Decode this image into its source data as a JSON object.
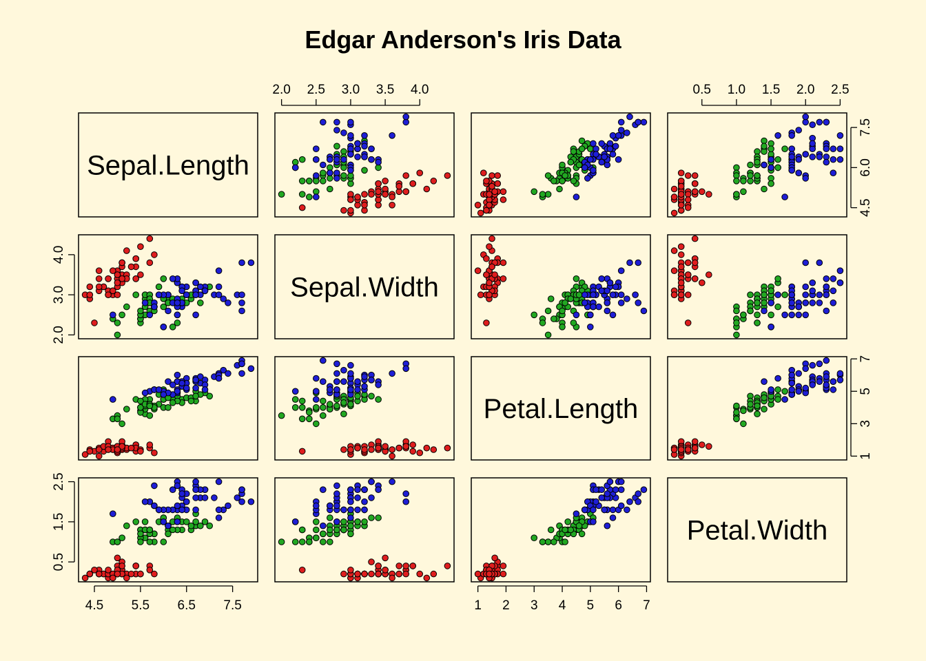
{
  "chart_data": {
    "type": "scatter",
    "kind": "scatterplot-matrix",
    "title": "Edgar Anderson's Iris Data",
    "variables": [
      "Sepal.Length",
      "Sepal.Width",
      "Petal.Length",
      "Petal.Width"
    ],
    "ranges": {
      "Sepal.Length": [
        4.3,
        7.9
      ],
      "Sepal.Width": [
        2.0,
        4.4
      ],
      "Petal.Length": [
        1.0,
        6.9
      ],
      "Petal.Width": [
        0.1,
        2.5
      ]
    },
    "ticks": {
      "Sepal.Length": [
        "4.5",
        "5.5",
        "6.5",
        "7.5"
      ],
      "Sepal.Width": [
        "2.0",
        "2.5",
        "3.0",
        "3.5",
        "4.0"
      ],
      "Petal.Length": [
        "1",
        "2",
        "3",
        "4",
        "5",
        "6",
        "7"
      ],
      "Petal.Width": [
        "0.5",
        "1.0",
        "1.5",
        "2.0",
        "2.5"
      ]
    },
    "left_ticks": {
      "Sepal.Width": [
        "2.0",
        "3.0",
        "4.0"
      ],
      "Petal.Width": [
        "0.5",
        "1.5",
        "2.5"
      ]
    },
    "right_ticks": {
      "Sepal.Length": [
        "4.5",
        "6.0",
        "7.5"
      ],
      "Petal.Length": [
        "1",
        "3",
        "5",
        "7"
      ]
    },
    "grid": false,
    "legend": "none",
    "series": [
      {
        "color": "#DF1E1E",
        "values": [
          [
            5.1,
            3.5,
            1.4,
            0.2
          ],
          [
            4.9,
            3.0,
            1.4,
            0.2
          ],
          [
            4.7,
            3.2,
            1.3,
            0.2
          ],
          [
            4.6,
            3.1,
            1.5,
            0.2
          ],
          [
            5.0,
            3.6,
            1.4,
            0.2
          ],
          [
            5.4,
            3.9,
            1.7,
            0.4
          ],
          [
            4.6,
            3.4,
            1.4,
            0.3
          ],
          [
            5.0,
            3.4,
            1.5,
            0.2
          ],
          [
            4.4,
            2.9,
            1.4,
            0.2
          ],
          [
            4.9,
            3.1,
            1.5,
            0.1
          ],
          [
            5.4,
            3.7,
            1.5,
            0.2
          ],
          [
            4.8,
            3.4,
            1.6,
            0.2
          ],
          [
            4.8,
            3.0,
            1.4,
            0.1
          ],
          [
            4.3,
            3.0,
            1.1,
            0.1
          ],
          [
            5.8,
            4.0,
            1.2,
            0.2
          ],
          [
            5.7,
            4.4,
            1.5,
            0.4
          ],
          [
            5.4,
            3.9,
            1.3,
            0.4
          ],
          [
            5.1,
            3.5,
            1.4,
            0.3
          ],
          [
            5.7,
            3.8,
            1.7,
            0.3
          ],
          [
            5.1,
            3.8,
            1.5,
            0.3
          ],
          [
            5.4,
            3.4,
            1.7,
            0.2
          ],
          [
            5.1,
            3.7,
            1.5,
            0.4
          ],
          [
            4.6,
            3.6,
            1.0,
            0.2
          ],
          [
            5.1,
            3.3,
            1.7,
            0.5
          ],
          [
            4.8,
            3.4,
            1.9,
            0.2
          ],
          [
            5.0,
            3.0,
            1.6,
            0.2
          ],
          [
            5.0,
            3.4,
            1.6,
            0.4
          ],
          [
            5.2,
            3.5,
            1.5,
            0.2
          ],
          [
            5.2,
            3.4,
            1.4,
            0.2
          ],
          [
            4.7,
            3.2,
            1.6,
            0.2
          ],
          [
            4.8,
            3.1,
            1.6,
            0.2
          ],
          [
            5.4,
            3.4,
            1.5,
            0.4
          ],
          [
            5.2,
            4.1,
            1.5,
            0.1
          ],
          [
            5.5,
            4.2,
            1.4,
            0.2
          ],
          [
            4.9,
            3.1,
            1.5,
            0.2
          ],
          [
            5.0,
            3.2,
            1.2,
            0.2
          ],
          [
            5.5,
            3.5,
            1.3,
            0.2
          ],
          [
            4.9,
            3.6,
            1.4,
            0.1
          ],
          [
            4.4,
            3.0,
            1.3,
            0.2
          ],
          [
            5.1,
            3.4,
            1.5,
            0.2
          ],
          [
            5.0,
            3.5,
            1.3,
            0.3
          ],
          [
            4.5,
            2.3,
            1.3,
            0.3
          ],
          [
            4.4,
            3.2,
            1.3,
            0.2
          ],
          [
            5.0,
            3.5,
            1.6,
            0.6
          ],
          [
            5.1,
            3.8,
            1.9,
            0.4
          ],
          [
            4.8,
            3.0,
            1.4,
            0.3
          ],
          [
            5.1,
            3.8,
            1.6,
            0.2
          ],
          [
            4.6,
            3.2,
            1.4,
            0.2
          ],
          [
            5.3,
            3.7,
            1.5,
            0.2
          ],
          [
            5.0,
            3.3,
            1.4,
            0.2
          ]
        ]
      },
      {
        "color": "#22A822",
        "values": [
          [
            7.0,
            3.2,
            4.7,
            1.4
          ],
          [
            6.4,
            3.2,
            4.5,
            1.5
          ],
          [
            6.9,
            3.1,
            4.9,
            1.5
          ],
          [
            5.5,
            2.3,
            4.0,
            1.3
          ],
          [
            6.5,
            2.8,
            4.6,
            1.5
          ],
          [
            5.7,
            2.8,
            4.5,
            1.3
          ],
          [
            6.3,
            3.3,
            4.7,
            1.6
          ],
          [
            4.9,
            2.4,
            3.3,
            1.0
          ],
          [
            6.6,
            2.9,
            4.6,
            1.3
          ],
          [
            5.2,
            2.7,
            3.9,
            1.4
          ],
          [
            5.0,
            2.0,
            3.5,
            1.0
          ],
          [
            5.9,
            3.0,
            4.2,
            1.5
          ],
          [
            6.0,
            2.2,
            4.0,
            1.0
          ],
          [
            6.1,
            2.9,
            4.7,
            1.4
          ],
          [
            5.6,
            2.9,
            3.6,
            1.3
          ],
          [
            6.7,
            3.1,
            4.4,
            1.4
          ],
          [
            5.6,
            3.0,
            4.5,
            1.5
          ],
          [
            5.8,
            2.7,
            4.1,
            1.0
          ],
          [
            6.2,
            2.2,
            4.5,
            1.5
          ],
          [
            5.6,
            2.5,
            3.9,
            1.1
          ],
          [
            5.9,
            3.2,
            4.8,
            1.8
          ],
          [
            6.1,
            2.8,
            4.0,
            1.3
          ],
          [
            6.3,
            2.5,
            4.9,
            1.5
          ],
          [
            6.1,
            2.8,
            4.7,
            1.2
          ],
          [
            6.4,
            2.9,
            4.3,
            1.3
          ],
          [
            6.6,
            3.0,
            4.4,
            1.4
          ],
          [
            6.8,
            2.8,
            4.8,
            1.4
          ],
          [
            6.7,
            3.0,
            5.0,
            1.7
          ],
          [
            6.0,
            2.9,
            4.5,
            1.5
          ],
          [
            5.7,
            2.6,
            3.5,
            1.0
          ],
          [
            5.5,
            2.4,
            3.8,
            1.1
          ],
          [
            5.5,
            2.4,
            3.7,
            1.0
          ],
          [
            5.8,
            2.7,
            3.9,
            1.2
          ],
          [
            6.0,
            2.7,
            5.1,
            1.6
          ],
          [
            5.4,
            3.0,
            4.5,
            1.5
          ],
          [
            6.0,
            3.4,
            4.5,
            1.6
          ],
          [
            6.7,
            3.1,
            4.7,
            1.5
          ],
          [
            6.3,
            2.3,
            4.4,
            1.3
          ],
          [
            5.6,
            3.0,
            4.1,
            1.3
          ],
          [
            5.5,
            2.5,
            4.0,
            1.3
          ],
          [
            5.5,
            2.6,
            4.4,
            1.2
          ],
          [
            6.1,
            3.0,
            4.6,
            1.4
          ],
          [
            5.8,
            2.6,
            4.0,
            1.2
          ],
          [
            5.0,
            2.3,
            3.3,
            1.0
          ],
          [
            5.6,
            2.7,
            4.2,
            1.3
          ],
          [
            5.7,
            3.0,
            4.2,
            1.2
          ],
          [
            5.7,
            2.9,
            4.2,
            1.3
          ],
          [
            6.2,
            2.9,
            4.3,
            1.3
          ],
          [
            5.1,
            2.5,
            3.0,
            1.1
          ],
          [
            5.7,
            2.8,
            4.1,
            1.3
          ]
        ]
      },
      {
        "color": "#1E1ED6",
        "values": [
          [
            6.3,
            3.3,
            6.0,
            2.5
          ],
          [
            5.8,
            2.7,
            5.1,
            1.9
          ],
          [
            7.1,
            3.0,
            5.9,
            2.1
          ],
          [
            6.3,
            2.9,
            5.6,
            1.8
          ],
          [
            6.5,
            3.0,
            5.8,
            2.2
          ],
          [
            7.6,
            3.0,
            6.6,
            2.1
          ],
          [
            4.9,
            2.5,
            4.5,
            1.7
          ],
          [
            7.3,
            2.9,
            6.3,
            1.8
          ],
          [
            6.7,
            2.5,
            5.8,
            1.8
          ],
          [
            7.2,
            3.6,
            6.1,
            2.5
          ],
          [
            6.5,
            3.2,
            5.1,
            2.0
          ],
          [
            6.4,
            2.7,
            5.3,
            1.9
          ],
          [
            6.8,
            3.0,
            5.5,
            2.1
          ],
          [
            5.7,
            2.5,
            5.0,
            2.0
          ],
          [
            5.8,
            2.8,
            5.1,
            2.4
          ],
          [
            6.4,
            3.2,
            5.3,
            2.3
          ],
          [
            6.5,
            3.0,
            5.5,
            1.8
          ],
          [
            7.7,
            3.8,
            6.7,
            2.2
          ],
          [
            7.7,
            2.6,
            6.9,
            2.3
          ],
          [
            6.0,
            2.2,
            5.0,
            1.5
          ],
          [
            6.9,
            3.2,
            5.7,
            2.3
          ],
          [
            5.6,
            2.8,
            4.9,
            2.0
          ],
          [
            7.7,
            2.8,
            6.7,
            2.0
          ],
          [
            6.3,
            2.7,
            4.9,
            1.8
          ],
          [
            6.7,
            3.3,
            5.7,
            2.1
          ],
          [
            7.2,
            3.2,
            6.0,
            1.8
          ],
          [
            6.2,
            2.8,
            4.8,
            1.8
          ],
          [
            6.1,
            3.0,
            4.9,
            1.8
          ],
          [
            6.4,
            2.8,
            5.6,
            2.1
          ],
          [
            7.2,
            3.0,
            5.8,
            1.6
          ],
          [
            7.4,
            2.8,
            6.1,
            1.9
          ],
          [
            7.9,
            3.8,
            6.4,
            2.0
          ],
          [
            6.4,
            2.8,
            5.6,
            2.2
          ],
          [
            6.3,
            2.8,
            5.1,
            1.5
          ],
          [
            6.1,
            2.6,
            5.6,
            1.4
          ],
          [
            7.7,
            3.0,
            6.1,
            2.3
          ],
          [
            6.3,
            3.4,
            5.6,
            2.4
          ],
          [
            6.4,
            3.1,
            5.5,
            1.8
          ],
          [
            6.0,
            3.0,
            4.8,
            1.8
          ],
          [
            6.9,
            3.1,
            5.4,
            2.1
          ],
          [
            6.7,
            3.1,
            5.6,
            2.4
          ],
          [
            6.9,
            3.1,
            5.1,
            2.3
          ],
          [
            5.8,
            2.7,
            5.1,
            1.9
          ],
          [
            6.8,
            3.2,
            5.9,
            2.3
          ],
          [
            6.7,
            3.3,
            5.7,
            2.5
          ],
          [
            6.7,
            3.0,
            5.2,
            2.3
          ],
          [
            6.3,
            2.5,
            5.0,
            1.9
          ],
          [
            6.5,
            3.0,
            5.2,
            2.0
          ],
          [
            6.2,
            3.4,
            5.4,
            2.3
          ],
          [
            5.9,
            3.0,
            5.1,
            1.8
          ]
        ]
      }
    ]
  }
}
